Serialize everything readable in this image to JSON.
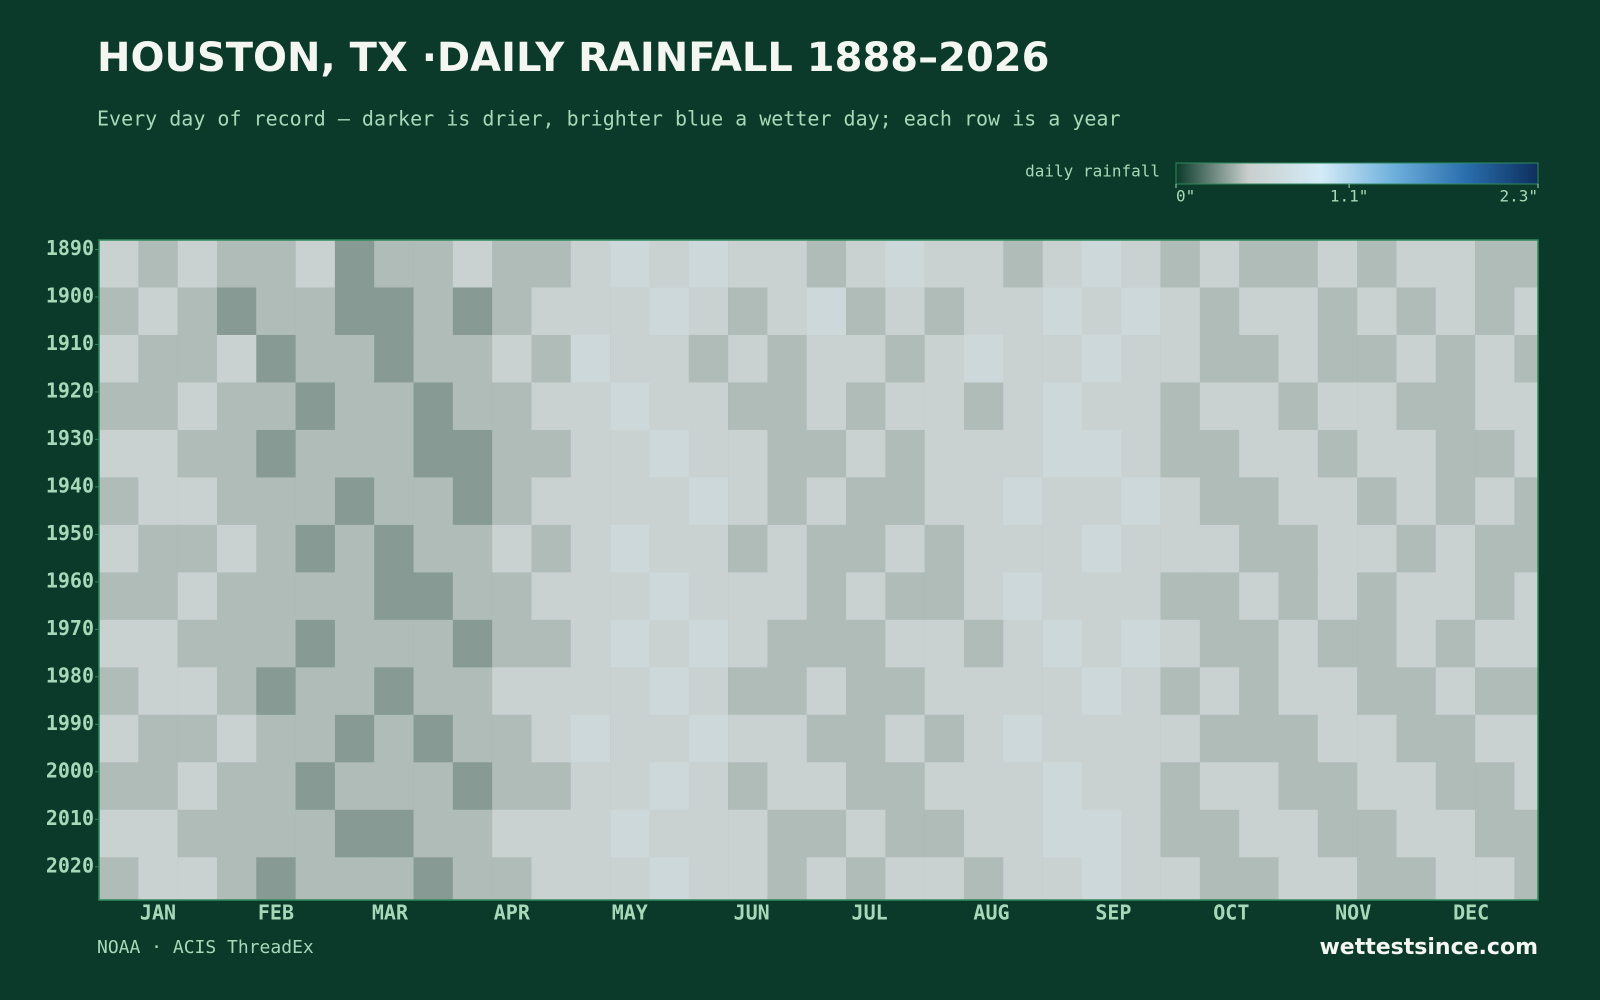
{
  "chart_data": {
    "type": "heatmap",
    "title": "HOUSTON, TX ·DAILY RAINFALL 1888–2026",
    "subtitle": "Every day of record — darker is drier, brighter blue a wetter day; each row is a year",
    "legend_label": "daily rainfall",
    "zlim": [
      0,
      2.3
    ],
    "zticks": [
      {
        "value": 0,
        "label": "0\""
      },
      {
        "value": 1.1,
        "label": "1.1\""
      },
      {
        "value": 2.3,
        "label": "2.3\""
      }
    ],
    "colors": [
      "#0a3a2a",
      "#c9cfcd",
      "#d4ebf7",
      "#6fb0dc",
      "#2a6fad",
      "#0d2f5e"
    ],
    "xlim": [
      1,
      367
    ],
    "xticks": [
      {
        "value": 16,
        "label": "JAN"
      },
      {
        "value": 46,
        "label": "FEB"
      },
      {
        "value": 75,
        "label": "MAR"
      },
      {
        "value": 106,
        "label": "APR"
      },
      {
        "value": 136,
        "label": "MAY"
      },
      {
        "value": 167,
        "label": "JUN"
      },
      {
        "value": 197,
        "label": "JUL"
      },
      {
        "value": 228,
        "label": "AUG"
      },
      {
        "value": 259,
        "label": "SEP"
      },
      {
        "value": 289,
        "label": "OCT"
      },
      {
        "value": 320,
        "label": "NOV"
      },
      {
        "value": 350,
        "label": "DEC"
      }
    ],
    "ylim": [
      1888,
      2027
    ],
    "yticks": [
      1890,
      1900,
      1910,
      1920,
      1930,
      1940,
      1950,
      1960,
      1970,
      1980,
      1990,
      2000,
      2010,
      2020
    ],
    "x_bins": [
      1,
      11,
      21,
      31,
      41,
      51,
      61,
      71,
      81,
      91,
      101,
      111,
      121,
      131,
      141,
      151,
      161,
      171,
      181,
      191,
      201,
      211,
      221,
      231,
      241,
      251,
      261,
      271,
      281,
      291,
      301,
      311,
      321,
      331,
      341,
      351,
      361,
      367
    ],
    "y_bins": [
      1888,
      1898,
      1908,
      1918,
      1928,
      1938,
      1948,
      1958,
      1968,
      1978,
      1988,
      1998,
      2008,
      2018,
      2027
    ],
    "values": [
      [
        0.5,
        0.4,
        0.5,
        0.4,
        0.4,
        0.5,
        0.3,
        0.4,
        0.4,
        0.5,
        0.4,
        0.4,
        0.5,
        0.6,
        0.5,
        0.6,
        0.5,
        0.5,
        0.4,
        0.5,
        0.6,
        0.5,
        0.5,
        0.4,
        0.5,
        0.6,
        0.5,
        0.4,
        0.5,
        0.4,
        0.4,
        0.5,
        0.4,
        0.5,
        0.5,
        0.4,
        0.4
      ],
      [
        0.4,
        0.5,
        0.4,
        0.3,
        0.4,
        0.4,
        0.3,
        0.3,
        0.4,
        0.3,
        0.4,
        0.5,
        0.5,
        0.5,
        0.6,
        0.5,
        0.4,
        0.5,
        0.6,
        0.4,
        0.5,
        0.4,
        0.5,
        0.5,
        0.6,
        0.5,
        0.6,
        0.5,
        0.4,
        0.5,
        0.5,
        0.4,
        0.5,
        0.4,
        0.5,
        0.4,
        0.5
      ],
      [
        0.5,
        0.4,
        0.4,
        0.5,
        0.3,
        0.4,
        0.4,
        0.3,
        0.4,
        0.4,
        0.5,
        0.4,
        0.6,
        0.5,
        0.5,
        0.4,
        0.5,
        0.4,
        0.5,
        0.5,
        0.4,
        0.5,
        0.6,
        0.5,
        0.5,
        0.6,
        0.5,
        0.5,
        0.4,
        0.4,
        0.5,
        0.4,
        0.4,
        0.5,
        0.4,
        0.5,
        0.4
      ],
      [
        0.4,
        0.4,
        0.5,
        0.4,
        0.4,
        0.3,
        0.4,
        0.4,
        0.3,
        0.4,
        0.4,
        0.5,
        0.5,
        0.6,
        0.5,
        0.5,
        0.4,
        0.4,
        0.5,
        0.4,
        0.5,
        0.5,
        0.4,
        0.5,
        0.6,
        0.5,
        0.5,
        0.4,
        0.5,
        0.5,
        0.4,
        0.5,
        0.5,
        0.4,
        0.4,
        0.5,
        0.5
      ],
      [
        0.5,
        0.5,
        0.4,
        0.4,
        0.3,
        0.4,
        0.4,
        0.4,
        0.3,
        0.3,
        0.4,
        0.4,
        0.5,
        0.5,
        0.6,
        0.5,
        0.5,
        0.4,
        0.4,
        0.5,
        0.4,
        0.5,
        0.5,
        0.5,
        0.6,
        0.6,
        0.5,
        0.4,
        0.4,
        0.5,
        0.5,
        0.4,
        0.5,
        0.5,
        0.4,
        0.4,
        0.5
      ],
      [
        0.4,
        0.5,
        0.5,
        0.4,
        0.4,
        0.4,
        0.3,
        0.4,
        0.4,
        0.3,
        0.4,
        0.5,
        0.5,
        0.5,
        0.5,
        0.6,
        0.5,
        0.4,
        0.5,
        0.4,
        0.4,
        0.5,
        0.5,
        0.6,
        0.5,
        0.5,
        0.6,
        0.5,
        0.4,
        0.4,
        0.5,
        0.5,
        0.4,
        0.5,
        0.4,
        0.5,
        0.4
      ],
      [
        0.5,
        0.4,
        0.4,
        0.5,
        0.4,
        0.3,
        0.4,
        0.3,
        0.4,
        0.4,
        0.5,
        0.4,
        0.5,
        0.6,
        0.5,
        0.5,
        0.4,
        0.5,
        0.4,
        0.4,
        0.5,
        0.4,
        0.5,
        0.5,
        0.5,
        0.6,
        0.5,
        0.5,
        0.5,
        0.4,
        0.4,
        0.5,
        0.5,
        0.4,
        0.5,
        0.4,
        0.4
      ],
      [
        0.4,
        0.4,
        0.5,
        0.4,
        0.4,
        0.4,
        0.4,
        0.3,
        0.3,
        0.4,
        0.4,
        0.5,
        0.5,
        0.5,
        0.6,
        0.5,
        0.5,
        0.5,
        0.4,
        0.5,
        0.4,
        0.4,
        0.5,
        0.6,
        0.5,
        0.5,
        0.5,
        0.4,
        0.4,
        0.5,
        0.4,
        0.5,
        0.4,
        0.5,
        0.5,
        0.4,
        0.5
      ],
      [
        0.5,
        0.5,
        0.4,
        0.4,
        0.4,
        0.3,
        0.4,
        0.4,
        0.4,
        0.3,
        0.4,
        0.4,
        0.5,
        0.6,
        0.5,
        0.6,
        0.5,
        0.4,
        0.4,
        0.4,
        0.5,
        0.5,
        0.4,
        0.5,
        0.6,
        0.5,
        0.6,
        0.5,
        0.4,
        0.4,
        0.5,
        0.4,
        0.4,
        0.5,
        0.4,
        0.5,
        0.5
      ],
      [
        0.4,
        0.5,
        0.5,
        0.4,
        0.3,
        0.4,
        0.4,
        0.3,
        0.4,
        0.4,
        0.5,
        0.5,
        0.5,
        0.5,
        0.6,
        0.5,
        0.4,
        0.4,
        0.5,
        0.4,
        0.4,
        0.5,
        0.5,
        0.5,
        0.5,
        0.6,
        0.5,
        0.4,
        0.5,
        0.4,
        0.5,
        0.5,
        0.4,
        0.4,
        0.5,
        0.4,
        0.4
      ],
      [
        0.5,
        0.4,
        0.4,
        0.5,
        0.4,
        0.4,
        0.3,
        0.4,
        0.3,
        0.4,
        0.4,
        0.5,
        0.6,
        0.5,
        0.5,
        0.6,
        0.5,
        0.5,
        0.4,
        0.4,
        0.5,
        0.4,
        0.5,
        0.6,
        0.5,
        0.5,
        0.5,
        0.5,
        0.4,
        0.4,
        0.4,
        0.5,
        0.5,
        0.4,
        0.4,
        0.5,
        0.5
      ],
      [
        0.4,
        0.4,
        0.5,
        0.4,
        0.4,
        0.3,
        0.4,
        0.4,
        0.4,
        0.3,
        0.4,
        0.4,
        0.5,
        0.5,
        0.6,
        0.5,
        0.4,
        0.5,
        0.5,
        0.4,
        0.4,
        0.5,
        0.5,
        0.5,
        0.6,
        0.5,
        0.5,
        0.4,
        0.5,
        0.5,
        0.4,
        0.4,
        0.5,
        0.5,
        0.4,
        0.4,
        0.5
      ],
      [
        0.5,
        0.5,
        0.4,
        0.4,
        0.4,
        0.4,
        0.3,
        0.3,
        0.4,
        0.4,
        0.5,
        0.5,
        0.5,
        0.6,
        0.5,
        0.5,
        0.5,
        0.4,
        0.4,
        0.5,
        0.4,
        0.4,
        0.5,
        0.5,
        0.6,
        0.6,
        0.5,
        0.4,
        0.4,
        0.5,
        0.5,
        0.4,
        0.4,
        0.5,
        0.5,
        0.4,
        0.4
      ],
      [
        0.4,
        0.5,
        0.5,
        0.4,
        0.3,
        0.4,
        0.4,
        0.4,
        0.3,
        0.4,
        0.4,
        0.5,
        0.5,
        0.5,
        0.6,
        0.5,
        0.5,
        0.4,
        0.5,
        0.4,
        0.5,
        0.5,
        0.4,
        0.5,
        0.5,
        0.6,
        0.5,
        0.5,
        0.4,
        0.4,
        0.5,
        0.5,
        0.4,
        0.4,
        0.5,
        0.5,
        0.4
      ]
    ],
    "source": "NOAA · ACIS ThreadEx",
    "brand": "wettestsince.com"
  }
}
